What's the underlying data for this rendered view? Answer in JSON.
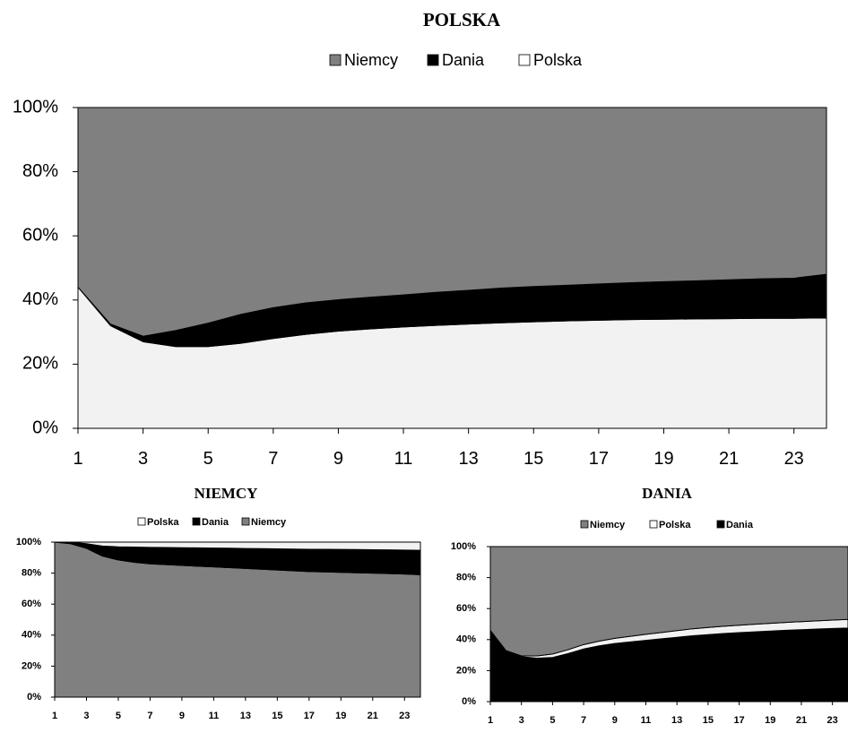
{
  "chart_data": [
    {
      "type": "area",
      "stacked": "percent",
      "title": "POLSKA",
      "xlabel": "",
      "ylabel": "",
      "ylim": [
        0,
        100
      ],
      "y_ticks": [
        "0%",
        "20%",
        "40%",
        "60%",
        "80%",
        "100%"
      ],
      "x_ticks": [
        "1",
        "3",
        "5",
        "7",
        "9",
        "11",
        "13",
        "15",
        "17",
        "19",
        "21",
        "23"
      ],
      "legend": {
        "placement": "top",
        "entries": [
          "Niemcy",
          "Dania",
          "Polska"
        ]
      },
      "colors": {
        "Niemcy": "#808080",
        "Dania": "#000000",
        "Polska": "#f2f2f2"
      },
      "x": [
        1,
        2,
        3,
        4,
        5,
        6,
        7,
        8,
        9,
        10,
        11,
        12,
        13,
        14,
        15,
        16,
        17,
        18,
        19,
        20,
        21,
        22,
        23,
        24
      ],
      "series": [
        {
          "name": "Polska",
          "values": [
            44,
            32,
            27,
            25.5,
            25.5,
            26.5,
            28,
            29.3,
            30.3,
            31,
            31.6,
            32.1,
            32.5,
            32.9,
            33.2,
            33.5,
            33.7,
            33.9,
            34,
            34.1,
            34.2,
            34.3,
            34.3,
            34.4
          ]
        },
        {
          "name": "Dania",
          "values": [
            0,
            0.5,
            1.7,
            5,
            7.3,
            9,
            9.6,
            9.8,
            9.8,
            9.9,
            10,
            10.3,
            10.5,
            10.8,
            11,
            11.1,
            11.3,
            11.5,
            11.7,
            11.9,
            12.1,
            12.3,
            12.5,
            13.6
          ]
        },
        {
          "name": "Niemcy",
          "values": [
            56,
            67.5,
            71.3,
            69.5,
            67.2,
            64.5,
            62.4,
            60.9,
            59.9,
            59.1,
            58.4,
            57.6,
            57,
            56.3,
            55.8,
            55.4,
            55,
            54.6,
            54.3,
            54,
            53.7,
            53.4,
            53.2,
            52
          ]
        }
      ]
    },
    {
      "type": "area",
      "stacked": "percent",
      "title": "NIEMCY",
      "xlabel": "",
      "ylabel": "",
      "ylim": [
        0,
        100
      ],
      "y_ticks": [
        "0%",
        "20%",
        "40%",
        "60%",
        "80%",
        "100%"
      ],
      "x_ticks": [
        "1",
        "3",
        "5",
        "7",
        "9",
        "11",
        "13",
        "15",
        "17",
        "19",
        "21",
        "23"
      ],
      "legend": {
        "placement": "top",
        "entries": [
          "Polska",
          "Dania",
          "Niemcy"
        ]
      },
      "colors": {
        "Niemcy": "#808080",
        "Dania": "#000000",
        "Polska": "#f2f2f2"
      },
      "x": [
        1,
        2,
        3,
        4,
        5,
        6,
        7,
        8,
        9,
        10,
        11,
        12,
        13,
        14,
        15,
        16,
        17,
        18,
        19,
        20,
        21,
        22,
        23,
        24
      ],
      "series": [
        {
          "name": "Niemcy",
          "values": [
            100,
            99,
            96,
            91,
            88.5,
            87,
            86,
            85.5,
            85,
            84.5,
            84,
            83.5,
            83,
            82.5,
            82,
            81.5,
            81,
            80.8,
            80.5,
            80.2,
            80,
            79.7,
            79.4,
            79
          ]
        },
        {
          "name": "Dania",
          "values": [
            0,
            1,
            3,
            6.5,
            8.5,
            9.8,
            10.6,
            11,
            11.4,
            11.8,
            12.2,
            12.6,
            12.9,
            13.3,
            13.7,
            14,
            14.4,
            14.6,
            14.8,
            15,
            15.1,
            15.3,
            15.5,
            15.7
          ]
        },
        {
          "name": "Polska",
          "values": [
            0,
            0,
            1,
            2.5,
            3,
            3.2,
            3.4,
            3.5,
            3.6,
            3.7,
            3.8,
            3.9,
            4.1,
            4.2,
            4.3,
            4.5,
            4.6,
            4.6,
            4.7,
            4.8,
            4.9,
            5,
            5.1,
            5.3
          ]
        }
      ]
    },
    {
      "type": "area",
      "stacked": "percent",
      "title": "DANIA",
      "xlabel": "",
      "ylabel": "",
      "ylim": [
        0,
        100
      ],
      "y_ticks": [
        "0%",
        "20%",
        "40%",
        "60%",
        "80%",
        "100%"
      ],
      "x_ticks": [
        "1",
        "3",
        "5",
        "7",
        "9",
        "11",
        "13",
        "15",
        "17",
        "19",
        "21",
        "23"
      ],
      "legend": {
        "placement": "top",
        "entries": [
          "Niemcy",
          "Polska",
          "Dania"
        ]
      },
      "colors": {
        "Niemcy": "#808080",
        "Dania": "#000000",
        "Polska": "#f2f2f2"
      },
      "x": [
        1,
        2,
        3,
        4,
        5,
        6,
        7,
        8,
        9,
        10,
        11,
        12,
        13,
        14,
        15,
        16,
        17,
        18,
        19,
        20,
        21,
        22,
        23,
        24
      ],
      "series": [
        {
          "name": "Dania",
          "values": [
            46,
            33,
            29,
            28,
            28.5,
            31,
            34,
            36,
            37.5,
            38.5,
            39.5,
            40.5,
            41.5,
            42.5,
            43.2,
            43.9,
            44.5,
            45,
            45.5,
            46,
            46.4,
            46.8,
            47.2,
            47.5
          ]
        },
        {
          "name": "Polska",
          "values": [
            0,
            0,
            0.5,
            1.5,
            2.2,
            2.5,
            2.8,
            3,
            3.3,
            3.6,
            3.9,
            4.1,
            4.3,
            4.5,
            4.6,
            4.7,
            4.8,
            4.9,
            5,
            5.1,
            5.2,
            5.3,
            5.4,
            5.5
          ]
        },
        {
          "name": "Niemcy",
          "values": [
            54,
            67,
            70.5,
            70.5,
            69.3,
            66.5,
            63.2,
            61,
            59.2,
            57.9,
            56.6,
            55.4,
            54.2,
            53,
            52.2,
            51.4,
            50.7,
            50.1,
            49.5,
            48.9,
            48.4,
            47.9,
            47.4,
            47
          ]
        }
      ]
    }
  ]
}
